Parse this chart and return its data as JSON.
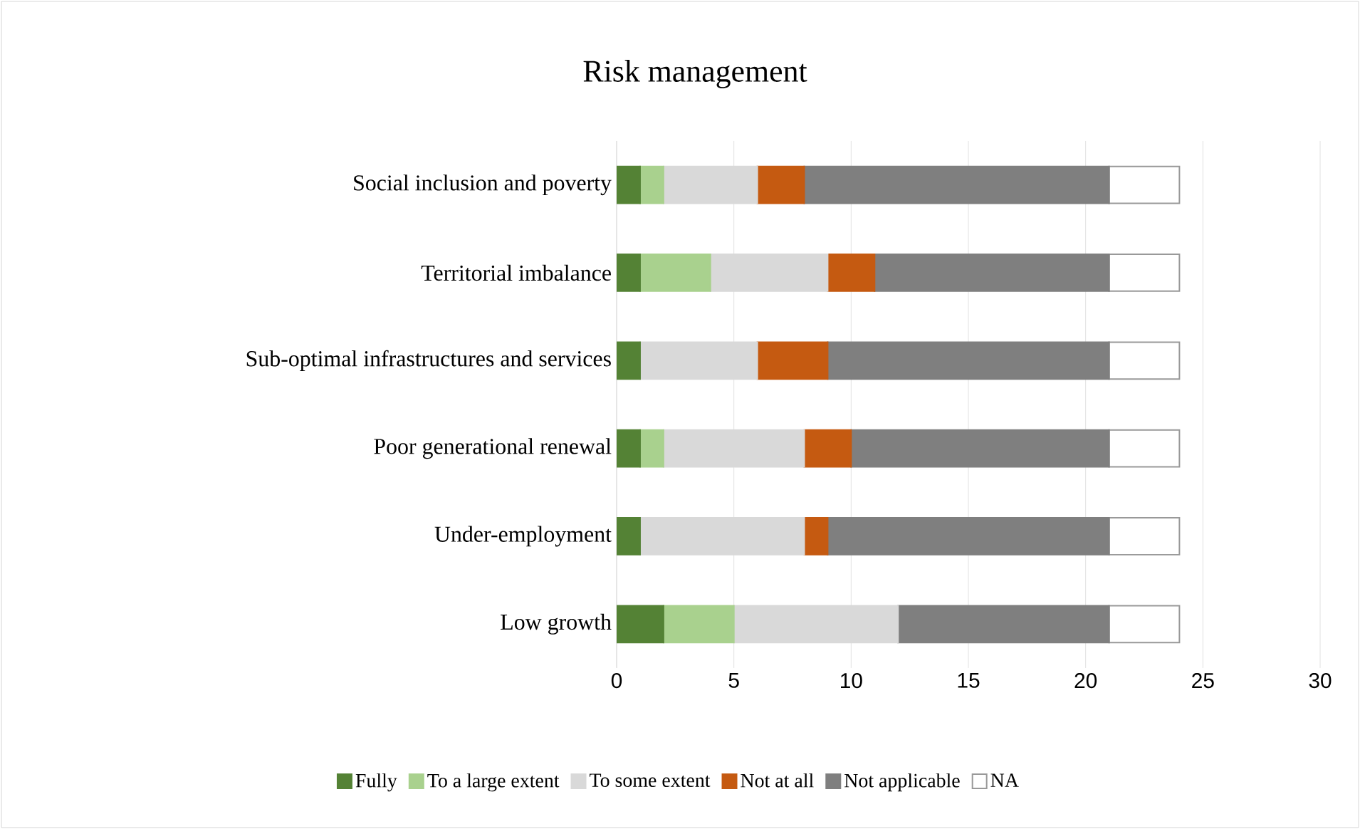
{
  "chart_data": {
    "type": "bar",
    "orientation": "horizontal",
    "stacked": true,
    "title": "Risk management",
    "categories": [
      "Social inclusion and poverty",
      "Territorial imbalance",
      "Sub-optimal infrastructures and services",
      "Poor generational renewal",
      "Under-employment",
      "Low growth"
    ],
    "series": [
      {
        "name": "Fully",
        "color": "#548235",
        "values": [
          1,
          1,
          1,
          1,
          1,
          2
        ]
      },
      {
        "name": "To a large extent",
        "color": "#a9d18e",
        "values": [
          1,
          3,
          0,
          1,
          0,
          3
        ]
      },
      {
        "name": "To some extent",
        "color": "#d9d9d9",
        "values": [
          4,
          5,
          5,
          6,
          7,
          7
        ]
      },
      {
        "name": "Not at all",
        "color": "#c55a11",
        "values": [
          2,
          2,
          3,
          2,
          1,
          0
        ]
      },
      {
        "name": "Not applicable",
        "color": "#7f7f7f",
        "values": [
          13,
          10,
          12,
          11,
          12,
          9
        ]
      },
      {
        "name": "NA",
        "color": "#ffffff",
        "values": [
          3,
          3,
          3,
          3,
          3,
          3
        ]
      }
    ],
    "xlim": [
      0,
      30
    ],
    "xticks": [
      0,
      5,
      10,
      15,
      20,
      25,
      30
    ],
    "grid": "x",
    "legend": "bottom"
  }
}
